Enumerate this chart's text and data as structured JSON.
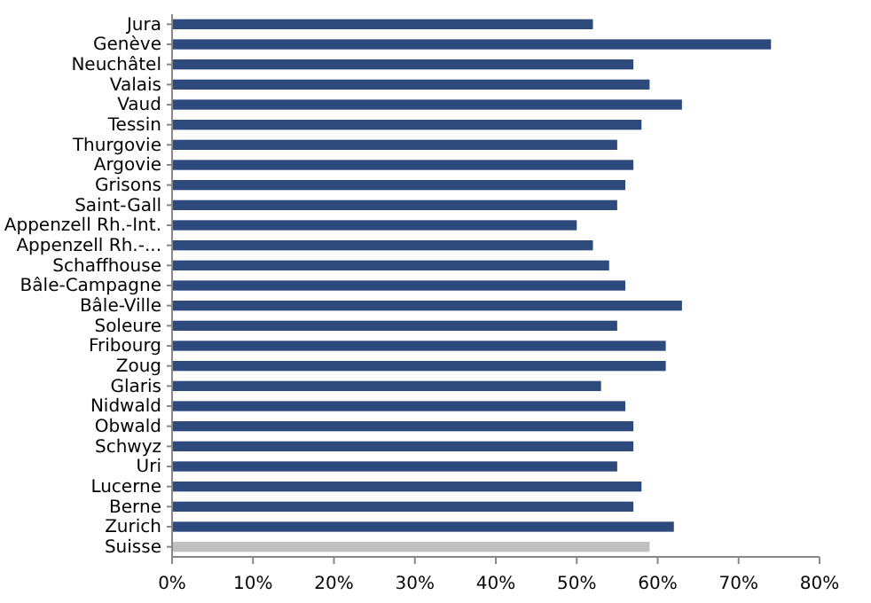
{
  "chart_data": {
    "type": "bar",
    "orientation": "horizontal",
    "categories": [
      "Jura",
      "Genève",
      "Neuchâtel",
      "Valais",
      "Vaud",
      "Tessin",
      "Thurgovie",
      "Argovie",
      "Grisons",
      "Saint-Gall",
      "Appenzell Rh.-Int.",
      "Appenzell Rh.-...",
      "Schaffhouse",
      "Bâle-Campagne",
      "Bâle-Ville",
      "Soleure",
      "Fribourg",
      "Zoug",
      "Glaris",
      "Nidwald",
      "Obwald",
      "Schwyz",
      "Uri",
      "Lucerne",
      "Berne",
      "Zurich",
      "Suisse"
    ],
    "values": [
      52,
      74,
      57,
      59,
      63,
      58,
      55,
      57,
      56,
      55,
      50,
      52,
      54,
      56,
      63,
      55,
      61,
      61,
      53,
      56,
      57,
      57,
      55,
      58,
      57,
      62,
      59
    ],
    "colors": [
      "#2e4a7d",
      "#2e4a7d",
      "#2e4a7d",
      "#2e4a7d",
      "#2e4a7d",
      "#2e4a7d",
      "#2e4a7d",
      "#2e4a7d",
      "#2e4a7d",
      "#2e4a7d",
      "#2e4a7d",
      "#2e4a7d",
      "#2e4a7d",
      "#2e4a7d",
      "#2e4a7d",
      "#2e4a7d",
      "#2e4a7d",
      "#2e4a7d",
      "#2e4a7d",
      "#2e4a7d",
      "#2e4a7d",
      "#2e4a7d",
      "#2e4a7d",
      "#2e4a7d",
      "#2e4a7d",
      "#2e4a7d",
      "#c0c0c0"
    ],
    "xlim": [
      0,
      80
    ],
    "xticks": [
      {
        "value": 0,
        "label": "0%"
      },
      {
        "value": 10,
        "label": "10%"
      },
      {
        "value": 20,
        "label": "20%"
      },
      {
        "value": 30,
        "label": "30%"
      },
      {
        "value": 40,
        "label": "40%"
      },
      {
        "value": 50,
        "label": "50%"
      },
      {
        "value": 60,
        "label": "60%"
      },
      {
        "value": 70,
        "label": "70%"
      },
      {
        "value": 80,
        "label": "80%"
      }
    ],
    "grid": false
  }
}
